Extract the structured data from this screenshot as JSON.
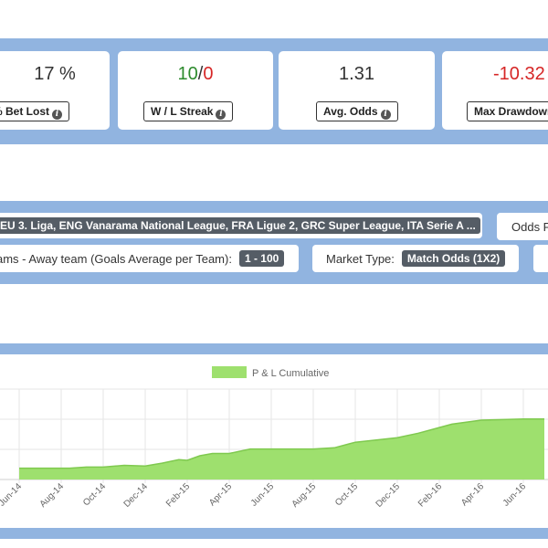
{
  "stats": [
    {
      "value": "17 %",
      "label": "% Bet Lost"
    },
    {
      "wins": "10",
      "sep": "/",
      "losses": "0",
      "label": "W / L Streak"
    },
    {
      "value": "1.31",
      "label": "Avg. Odds"
    },
    {
      "value": "-10.32",
      "label": "Max Drawdown"
    }
  ],
  "filters": {
    "leagues_value": "EU 3. Liga, ENG Vanarama National League, FRA Ligue 2, GRC Super League, ITA Serie A ...",
    "odds_label": "Odds F",
    "goals_label": "ams - Away team (Goals Average per Team):",
    "goals_value": "1 - 100",
    "market_label": "Market Type:",
    "market_value": "Match Odds (1X2)"
  },
  "chart_data": {
    "type": "area",
    "legend": "P & L Cumulative",
    "color": "#9ee06e",
    "x": [
      "Jun-14",
      "Aug-14",
      "Oct-14",
      "Dec-14",
      "Feb-15",
      "Apr-15",
      "Jun-15",
      "Aug-15",
      "Oct-15",
      "Dec-15",
      "Feb-16",
      "Apr-16",
      "Jun-16"
    ],
    "x_points": [
      0,
      0.4,
      0.8,
      1,
      1.2,
      1.6,
      2,
      2.5,
      3,
      3.4,
      3.8,
      4,
      4.3,
      4.6,
      5,
      5.5,
      6,
      6.5,
      7,
      7.5,
      8,
      8.5,
      9,
      9.5,
      10,
      10.3,
      10.6,
      11,
      11.5,
      12,
      12.5
    ],
    "y_points": [
      0,
      0,
      0,
      0,
      0,
      0.2,
      0.2,
      0.5,
      0.4,
      0.9,
      1.5,
      1.4,
      2.2,
      2.6,
      2.6,
      3.4,
      3.4,
      3.4,
      3.4,
      3.6,
      4.6,
      5.0,
      5.4,
      6.2,
      7.2,
      7.8,
      8.1,
      8.5,
      8.6,
      8.7,
      8.7
    ],
    "ylim": [
      -2,
      14
    ],
    "grid": true,
    "legend_position": "top"
  }
}
